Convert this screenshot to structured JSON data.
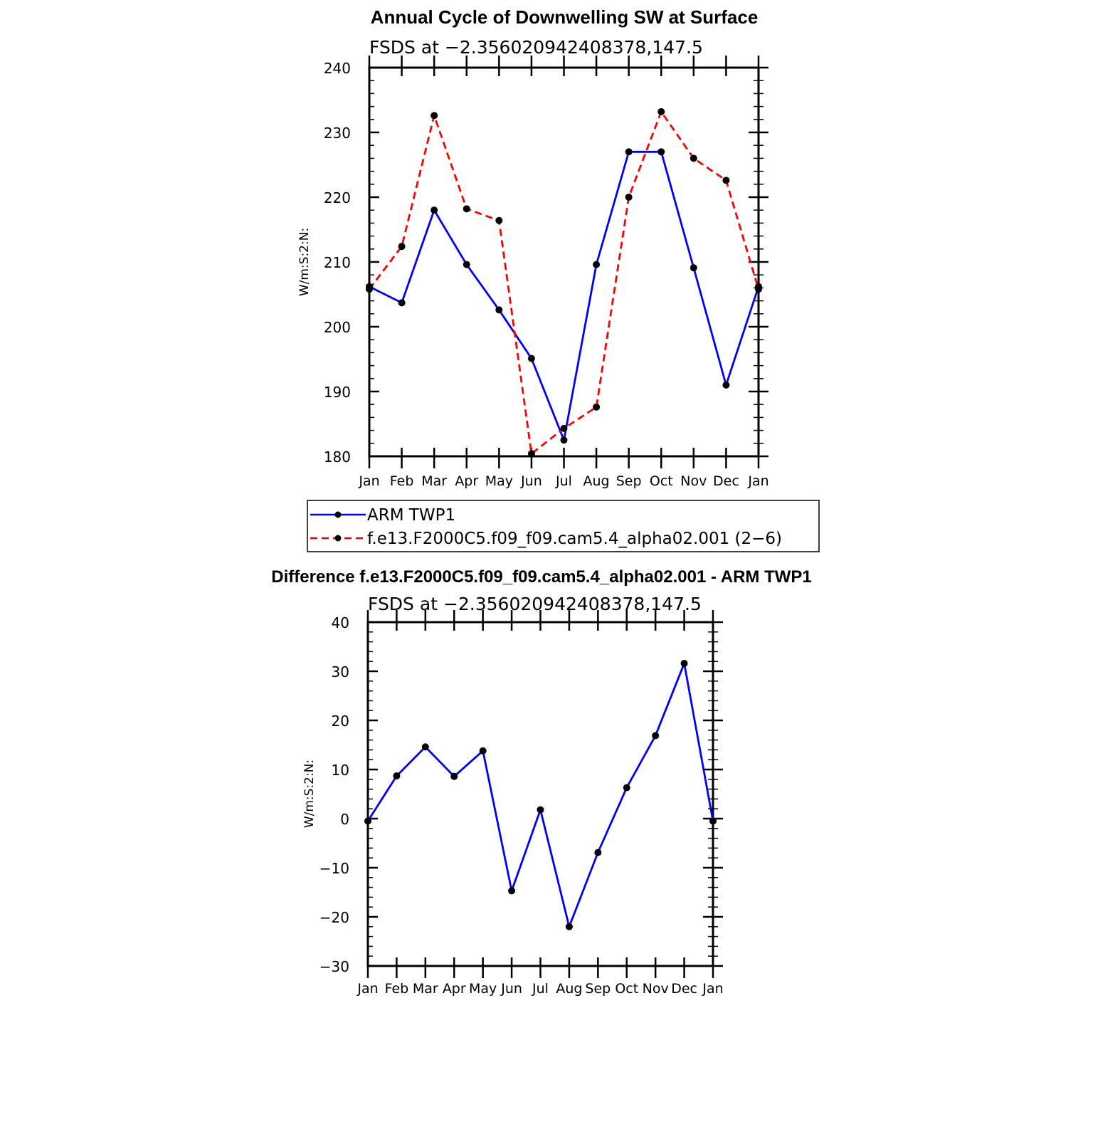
{
  "chart_data": [
    {
      "type": "line",
      "title": "Annual Cycle of Downwelling SW at Surface",
      "subtitle": "FSDS at −2.356020942408378,147.5",
      "xlabel": "",
      "ylabel": "W/m:S:2:N:",
      "categories": [
        "Jan",
        "Feb",
        "Mar",
        "Apr",
        "May",
        "Jun",
        "Jul",
        "Aug",
        "Sep",
        "Oct",
        "Nov",
        "Dec",
        "Jan"
      ],
      "ylim": [
        180,
        240
      ],
      "yticks": [
        "180",
        "190",
        "200",
        "210",
        "220",
        "230",
        "240"
      ],
      "grid": false,
      "legend_position": "bottom",
      "series": [
        {
          "name": "ARM TWP1",
          "color": "#0000ff",
          "dash": "solid",
          "values": [
            206.2,
            203.7,
            218.0,
            209.6,
            202.6,
            195.1,
            182.5,
            209.6,
            227.0,
            227.0,
            209.1,
            191.0,
            206.2
          ]
        },
        {
          "name": "f.e13.F2000C5.f09_f09.cam5.4_alpha02.001 (2−6)",
          "color": "#ff0000",
          "dash": "dashed",
          "values": [
            205.8,
            212.4,
            232.6,
            218.2,
            216.4,
            180.4,
            184.3,
            187.6,
            220.0,
            233.2,
            226.0,
            222.6,
            205.8
          ]
        }
      ]
    },
    {
      "type": "line",
      "title": "Difference f.e13.F2000C5.f09_f09.cam5.4_alpha02.001 - ARM TWP1",
      "subtitle": "FSDS at −2.356020942408378,147.5",
      "xlabel": "",
      "ylabel": "W/m:S:2:N:",
      "categories": [
        "Jan",
        "Feb",
        "Mar",
        "Apr",
        "May",
        "Jun",
        "Jul",
        "Aug",
        "Sep",
        "Oct",
        "Nov",
        "Dec",
        "Jan"
      ],
      "ylim": [
        -30,
        40
      ],
      "yticks": [
        "−30",
        "−20",
        "−10",
        "0",
        "10",
        "20",
        "30",
        "40"
      ],
      "grid": false,
      "series": [
        {
          "color": "#0000ff",
          "dash": "solid",
          "values": [
            -0.5,
            8.7,
            14.6,
            8.6,
            13.8,
            -14.7,
            1.8,
            -22.0,
            -6.9,
            6.3,
            16.9,
            31.6,
            -0.5
          ]
        }
      ]
    }
  ]
}
